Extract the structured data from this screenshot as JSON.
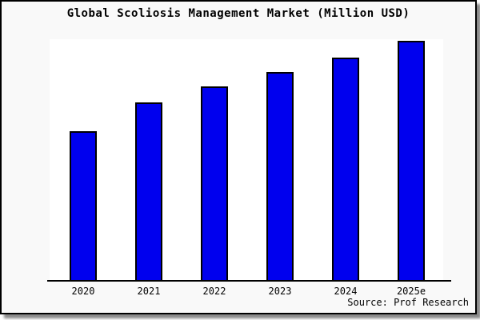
{
  "colors": {
    "bar_fill": "#0000ee",
    "bar_border": "#000000",
    "frame_bg": "#f9f9f9",
    "plot_bg": "#ffffff",
    "axis": "#000000",
    "text": "#000000",
    "shadow": "#8a8a8a"
  },
  "chart_data": {
    "type": "bar",
    "title": "Global Scoliosis Management Market (Million USD)",
    "categories": [
      "2020",
      "2021",
      "2022",
      "2023",
      "2024",
      "2025e"
    ],
    "values": [
      62.5,
      74.5,
      81,
      87,
      93,
      100
    ],
    "value_scale": "relative estimate; no y-axis tick labels shown, tallest bar (2025e) = 100",
    "xlabel": "",
    "ylabel": "",
    "legend": "none",
    "grid": false,
    "ylim": [
      0,
      100
    ],
    "source": "Source: Prof Research"
  }
}
